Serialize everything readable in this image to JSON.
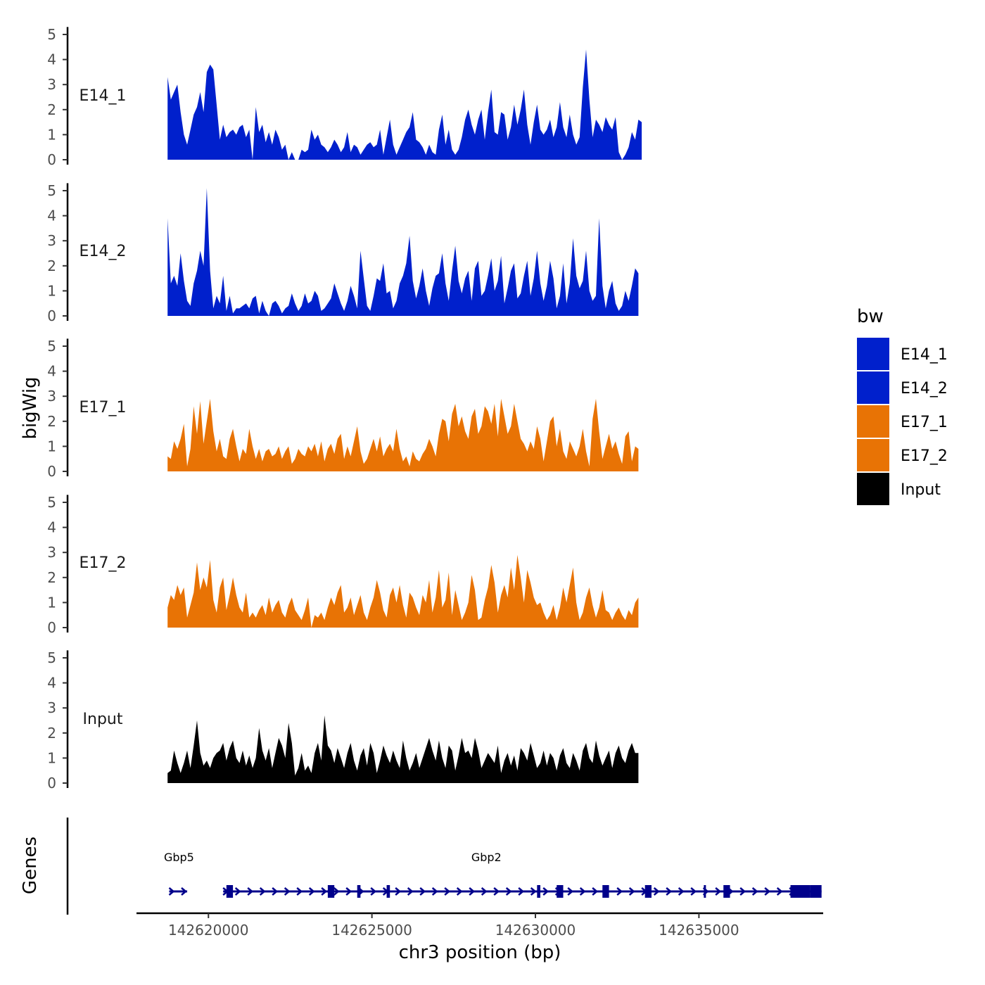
{
  "chart_data": {
    "type": "area",
    "xlabel": "chr3 position (bp)",
    "ylabel": "bigWig",
    "genes_label": "Genes",
    "xlim": [
      142617800,
      142638800
    ],
    "ylim": [
      0,
      5.3
    ],
    "x_ticks": [
      142620000,
      142625000,
      142630000,
      142635000
    ],
    "x_tick_labels": [
      "142620000",
      "142625000",
      "142630000",
      "142635000"
    ],
    "y_ticks": [
      0,
      1,
      2,
      3,
      4,
      5
    ],
    "y_tick_labels": [
      "0",
      "1",
      "2",
      "3",
      "4",
      "5"
    ],
    "colors": {
      "E14_1": "#0020cc",
      "E14_2": "#0020cc",
      "E17_1": "#e87305",
      "E17_2": "#e87305",
      "Input": "#000000",
      "genes": "#00008b"
    },
    "legend": {
      "title": "bw",
      "entries": [
        "E14_1",
        "E14_2",
        "E17_1",
        "E17_2",
        "Input"
      ]
    },
    "x_start": 142618750,
    "x_step": 100,
    "series": [
      {
        "name": "E14_1",
        "values": [
          3.3,
          2.4,
          2.7,
          3.0,
          1.9,
          1.0,
          0.6,
          1.2,
          1.8,
          2.1,
          2.7,
          1.9,
          3.5,
          3.8,
          3.6,
          2.2,
          0.8,
          1.4,
          0.9,
          1.1,
          1.2,
          1.0,
          1.3,
          1.4,
          0.9,
          1.2,
          0.0,
          2.1,
          1.1,
          1.4,
          0.7,
          1.1,
          0.6,
          1.2,
          0.9,
          0.4,
          0.6,
          0.0,
          0.3,
          0.0,
          0.0,
          0.4,
          0.3,
          0.4,
          1.2,
          0.8,
          1.0,
          0.6,
          0.5,
          0.3,
          0.5,
          0.8,
          0.6,
          0.3,
          0.5,
          1.1,
          0.3,
          0.6,
          0.5,
          0.2,
          0.4,
          0.6,
          0.7,
          0.5,
          0.6,
          1.2,
          0.2,
          0.9,
          1.6,
          0.6,
          0.2,
          0.5,
          0.8,
          1.1,
          1.3,
          1.9,
          0.8,
          0.7,
          0.5,
          0.2,
          0.6,
          0.3,
          0.2,
          1.2,
          1.8,
          0.6,
          1.2,
          0.4,
          0.2,
          0.4,
          0.9,
          1.6,
          2.0,
          1.4,
          1.0,
          1.6,
          2.0,
          0.8,
          1.9,
          2.8,
          1.1,
          1.0,
          1.9,
          1.8,
          0.8,
          1.3,
          2.2,
          1.4,
          2.0,
          2.8,
          1.4,
          0.6,
          1.5,
          2.2,
          1.2,
          1.0,
          1.2,
          1.6,
          0.9,
          1.3,
          2.3,
          1.3,
          0.9,
          1.8,
          1.0,
          0.6,
          0.9,
          2.9,
          4.4,
          2.4,
          0.9,
          1.6,
          1.4,
          1.1,
          1.7,
          1.4,
          1.2,
          1.7,
          0.3,
          0.0,
          0.2,
          0.5,
          1.1,
          0.8,
          1.6,
          1.5
        ]
      },
      {
        "name": "E14_2",
        "values": [
          3.9,
          1.3,
          1.6,
          1.2,
          2.5,
          1.4,
          0.6,
          0.4,
          1.3,
          1.8,
          2.6,
          2.0,
          5.1,
          1.8,
          0.3,
          0.8,
          0.5,
          1.6,
          0.2,
          0.8,
          0.1,
          0.3,
          0.3,
          0.4,
          0.5,
          0.3,
          0.7,
          0.8,
          0.1,
          0.6,
          0.2,
          0.0,
          0.5,
          0.6,
          0.4,
          0.1,
          0.3,
          0.4,
          0.9,
          0.5,
          0.2,
          0.4,
          0.9,
          0.5,
          0.6,
          1.0,
          0.8,
          0.2,
          0.3,
          0.5,
          0.7,
          1.3,
          0.9,
          0.5,
          0.2,
          0.6,
          1.2,
          0.8,
          0.3,
          2.6,
          1.5,
          0.4,
          0.2,
          0.8,
          1.5,
          1.4,
          2.1,
          0.9,
          1.0,
          0.3,
          0.6,
          1.3,
          1.6,
          2.1,
          3.2,
          1.4,
          0.7,
          1.2,
          1.9,
          1.0,
          0.4,
          1.1,
          1.6,
          1.7,
          2.5,
          1.3,
          0.6,
          1.8,
          2.8,
          1.4,
          0.9,
          1.5,
          1.8,
          0.6,
          1.9,
          2.2,
          0.8,
          1.0,
          1.6,
          2.3,
          1.0,
          1.4,
          2.4,
          0.5,
          1.1,
          1.8,
          2.1,
          0.7,
          0.9,
          1.6,
          2.2,
          0.8,
          1.5,
          2.6,
          1.3,
          0.6,
          1.2,
          2.2,
          1.5,
          0.3,
          0.8,
          2.1,
          0.5,
          1.3,
          3.1,
          1.6,
          1.1,
          1.4,
          2.6,
          1.0,
          0.6,
          0.8,
          3.9,
          1.2,
          0.3,
          1.0,
          1.4,
          0.5,
          0.2,
          0.4,
          1.0,
          0.6,
          1.2,
          1.9,
          1.7
        ]
      },
      {
        "name": "E17_1",
        "values": [
          0.6,
          0.5,
          1.2,
          0.9,
          1.3,
          1.9,
          0.2,
          0.9,
          2.6,
          1.5,
          2.8,
          1.1,
          2.0,
          2.9,
          1.6,
          0.8,
          1.3,
          0.6,
          0.5,
          1.3,
          1.7,
          1.0,
          0.4,
          0.9,
          0.7,
          1.7,
          1.0,
          0.5,
          0.9,
          0.4,
          0.8,
          0.9,
          0.6,
          0.7,
          1.0,
          0.5,
          0.8,
          1.0,
          0.3,
          0.5,
          0.9,
          0.7,
          0.6,
          1.0,
          0.8,
          1.1,
          0.6,
          1.2,
          0.4,
          0.9,
          1.1,
          0.7,
          1.3,
          1.5,
          0.5,
          1.0,
          0.6,
          1.2,
          1.8,
          0.8,
          0.3,
          0.5,
          0.9,
          1.3,
          0.8,
          1.4,
          0.6,
          0.9,
          1.1,
          0.8,
          1.7,
          0.9,
          0.4,
          0.6,
          0.2,
          0.8,
          0.5,
          0.4,
          0.7,
          0.9,
          1.3,
          1.0,
          0.6,
          1.5,
          2.1,
          2.0,
          1.2,
          2.3,
          2.7,
          1.8,
          2.2,
          1.6,
          1.3,
          2.2,
          2.5,
          1.5,
          1.8,
          2.6,
          2.4,
          1.9,
          2.7,
          1.4,
          2.9,
          2.2,
          1.5,
          1.8,
          2.7,
          2.0,
          1.3,
          1.1,
          0.8,
          1.2,
          0.9,
          1.8,
          1.3,
          0.4,
          1.2,
          2.0,
          2.2,
          1.0,
          1.7,
          0.8,
          0.5,
          1.2,
          0.9,
          0.6,
          1.0,
          1.7,
          0.8,
          0.2,
          2.1,
          2.9,
          1.6,
          0.5,
          1.0,
          1.5,
          0.9,
          1.2,
          0.7,
          0.3,
          1.4,
          1.6,
          0.4,
          1.0,
          0.9
        ]
      },
      {
        "name": "E17_2",
        "values": [
          0.8,
          1.3,
          1.1,
          1.7,
          1.3,
          1.6,
          0.4,
          0.9,
          1.4,
          2.6,
          1.5,
          2.0,
          1.6,
          2.7,
          1.1,
          0.6,
          1.6,
          2.0,
          0.7,
          1.3,
          2.0,
          1.3,
          0.8,
          0.6,
          1.4,
          0.4,
          0.6,
          0.4,
          0.7,
          0.9,
          0.5,
          1.2,
          0.6,
          0.9,
          1.1,
          0.6,
          0.4,
          0.9,
          1.2,
          0.7,
          0.5,
          0.3,
          0.7,
          1.2,
          0.0,
          0.5,
          0.4,
          0.6,
          0.3,
          0.8,
          1.2,
          0.9,
          1.4,
          1.7,
          0.6,
          0.8,
          1.2,
          0.5,
          0.9,
          1.3,
          0.6,
          0.3,
          0.8,
          1.2,
          1.9,
          1.4,
          0.7,
          0.4,
          1.3,
          1.6,
          1.0,
          1.7,
          0.9,
          0.4,
          1.4,
          1.2,
          0.8,
          0.5,
          1.3,
          1.0,
          1.9,
          0.6,
          1.2,
          2.3,
          0.8,
          1.1,
          2.2,
          0.5,
          1.5,
          0.9,
          0.3,
          0.6,
          1.0,
          2.1,
          1.5,
          0.3,
          0.4,
          1.1,
          1.6,
          2.5,
          1.8,
          0.6,
          1.3,
          1.7,
          1.2,
          2.4,
          1.5,
          2.9,
          2.0,
          1.0,
          2.3,
          1.8,
          1.2,
          0.9,
          1.0,
          0.6,
          0.3,
          0.5,
          0.9,
          0.3,
          0.8,
          1.6,
          1.0,
          1.7,
          2.4,
          1.0,
          0.3,
          0.6,
          1.2,
          1.6,
          0.9,
          0.4,
          0.8,
          1.5,
          0.7,
          0.6,
          0.3,
          0.6,
          0.8,
          0.5,
          0.3,
          0.7,
          0.5,
          1.0,
          1.2
        ]
      },
      {
        "name": "Input",
        "values": [
          0.4,
          0.5,
          1.3,
          0.8,
          0.4,
          0.8,
          1.3,
          0.6,
          1.5,
          2.5,
          1.2,
          0.7,
          0.9,
          0.6,
          1.0,
          1.2,
          1.3,
          1.6,
          0.9,
          1.4,
          1.7,
          1.0,
          0.8,
          1.3,
          0.7,
          1.1,
          0.6,
          1.0,
          2.2,
          1.3,
          0.9,
          1.4,
          0.6,
          1.2,
          1.8,
          1.5,
          1.0,
          2.4,
          1.6,
          0.3,
          0.6,
          1.2,
          0.5,
          0.7,
          0.4,
          1.2,
          1.6,
          0.9,
          2.7,
          1.5,
          1.3,
          0.8,
          1.4,
          1.0,
          0.6,
          1.2,
          1.6,
          0.9,
          0.5,
          1.1,
          1.4,
          0.7,
          1.6,
          1.2,
          0.4,
          0.9,
          1.5,
          1.1,
          0.8,
          1.3,
          0.9,
          0.6,
          1.7,
          1.0,
          0.5,
          0.8,
          1.2,
          0.6,
          1.0,
          1.4,
          1.8,
          1.3,
          0.9,
          1.7,
          1.0,
          0.6,
          1.5,
          1.3,
          0.5,
          1.1,
          1.8,
          1.2,
          1.3,
          1.0,
          1.8,
          1.3,
          0.6,
          0.9,
          1.2,
          1.0,
          0.8,
          1.5,
          0.4,
          0.9,
          1.2,
          0.7,
          1.1,
          0.5,
          1.4,
          1.2,
          0.9,
          1.6,
          1.1,
          0.6,
          0.8,
          1.3,
          0.7,
          1.2,
          1.0,
          0.5,
          1.1,
          1.4,
          0.8,
          0.6,
          1.2,
          0.9,
          0.5,
          1.3,
          1.6,
          1.0,
          0.8,
          1.7,
          1.1,
          0.7,
          1.0,
          1.3,
          0.6,
          1.2,
          1.5,
          1.0,
          0.8,
          1.3,
          1.6,
          1.2,
          1.2
        ]
      }
    ],
    "genes": [
      {
        "name": "Gbp5",
        "label_x": 142619100,
        "start": 142618800,
        "end": 142619350,
        "strand": "+",
        "exons": []
      },
      {
        "name": "Gbp2",
        "label_x": 142628500,
        "start": 142620450,
        "end": 142638750,
        "strand": "+",
        "exons": [
          [
            142620550,
            142620750
          ],
          [
            142623650,
            142623850
          ],
          [
            142624550,
            142624650
          ],
          [
            142625450,
            142625550
          ],
          [
            142630050,
            142630150
          ],
          [
            142630650,
            142630850
          ],
          [
            142632050,
            142632250
          ],
          [
            142633350,
            142633550
          ],
          [
            142635150,
            142635200
          ],
          [
            142635750,
            142635950
          ],
          [
            142637800,
            142638400
          ],
          [
            142638400,
            142638750
          ]
        ]
      }
    ]
  }
}
